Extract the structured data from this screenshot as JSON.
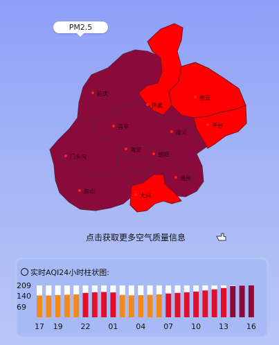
{
  "map": {
    "tab_label": "PM2.5",
    "districts": [
      {
        "id": "yanqing",
        "name": "延庆",
        "color": "#8b0a3c"
      },
      {
        "id": "huairou",
        "name": "怀柔",
        "color": "#ff0000"
      },
      {
        "id": "miyun",
        "name": "密云",
        "color": "#ff0000"
      },
      {
        "id": "pinggu",
        "name": "平谷",
        "color": "#ff0000"
      },
      {
        "id": "changping",
        "name": "昌平",
        "color": "#8b0a3c"
      },
      {
        "id": "shunyi",
        "name": "顺义",
        "color": "#8b0a3c"
      },
      {
        "id": "mentougou",
        "name": "门头沟",
        "color": "#8b0a3c"
      },
      {
        "id": "haidian",
        "name": "海淀",
        "color": "#8b0a3c"
      },
      {
        "id": "chaoyang",
        "name": "朝阳",
        "color": "#8b0a3c"
      },
      {
        "id": "tongzhou",
        "name": "通州",
        "color": "#8b0a3c"
      },
      {
        "id": "fangshan",
        "name": "房山",
        "color": "#8b0a3c"
      },
      {
        "id": "daxing",
        "name": "大兴",
        "color": "#ff0000"
      }
    ]
  },
  "info_link": "点击获取更多空气质量信息",
  "chart_panel": {
    "title": "实时AQI24小时柱状图:",
    "y_ticks": [
      "209",
      "140",
      "69"
    ],
    "x_ticks": [
      "17",
      "19",
      "22",
      "01",
      "04",
      "07",
      "10",
      "13",
      "16"
    ]
  },
  "chart_data": {
    "type": "bar",
    "title": "实时AQI24小时柱状图:",
    "ylim": [
      0,
      215
    ],
    "y_ticks": [
      209,
      140,
      69
    ],
    "categories": [
      "17",
      "18",
      "19",
      "20",
      "21",
      "22",
      "23",
      "00",
      "01",
      "02",
      "03",
      "04",
      "05",
      "06",
      "07",
      "08",
      "09",
      "10",
      "11",
      "12",
      "13",
      "14",
      "15",
      "16"
    ],
    "values": [
      143,
      143,
      146,
      148,
      150,
      160,
      164,
      166,
      163,
      147,
      144,
      145,
      147,
      150,
      156,
      160,
      164,
      169,
      176,
      183,
      192,
      205,
      208,
      209
    ],
    "bar_colors": [
      "#f08a1f",
      "#f08a1f",
      "#f08a1f",
      "#f08a1f",
      "#f08a1f",
      "#e0102c",
      "#e0102c",
      "#e0102c",
      "#e0102c",
      "#f08a1f",
      "#f08a1f",
      "#f08a1f",
      "#f08a1f",
      "#f08a1f",
      "#e0102c",
      "#e0102c",
      "#e0102c",
      "#e0102c",
      "#e0102c",
      "#e0102c",
      "#e0102c",
      "#8b0a3c",
      "#8b0a3c",
      "#8b0a3c"
    ],
    "background_bar_color": "#ffffff"
  }
}
